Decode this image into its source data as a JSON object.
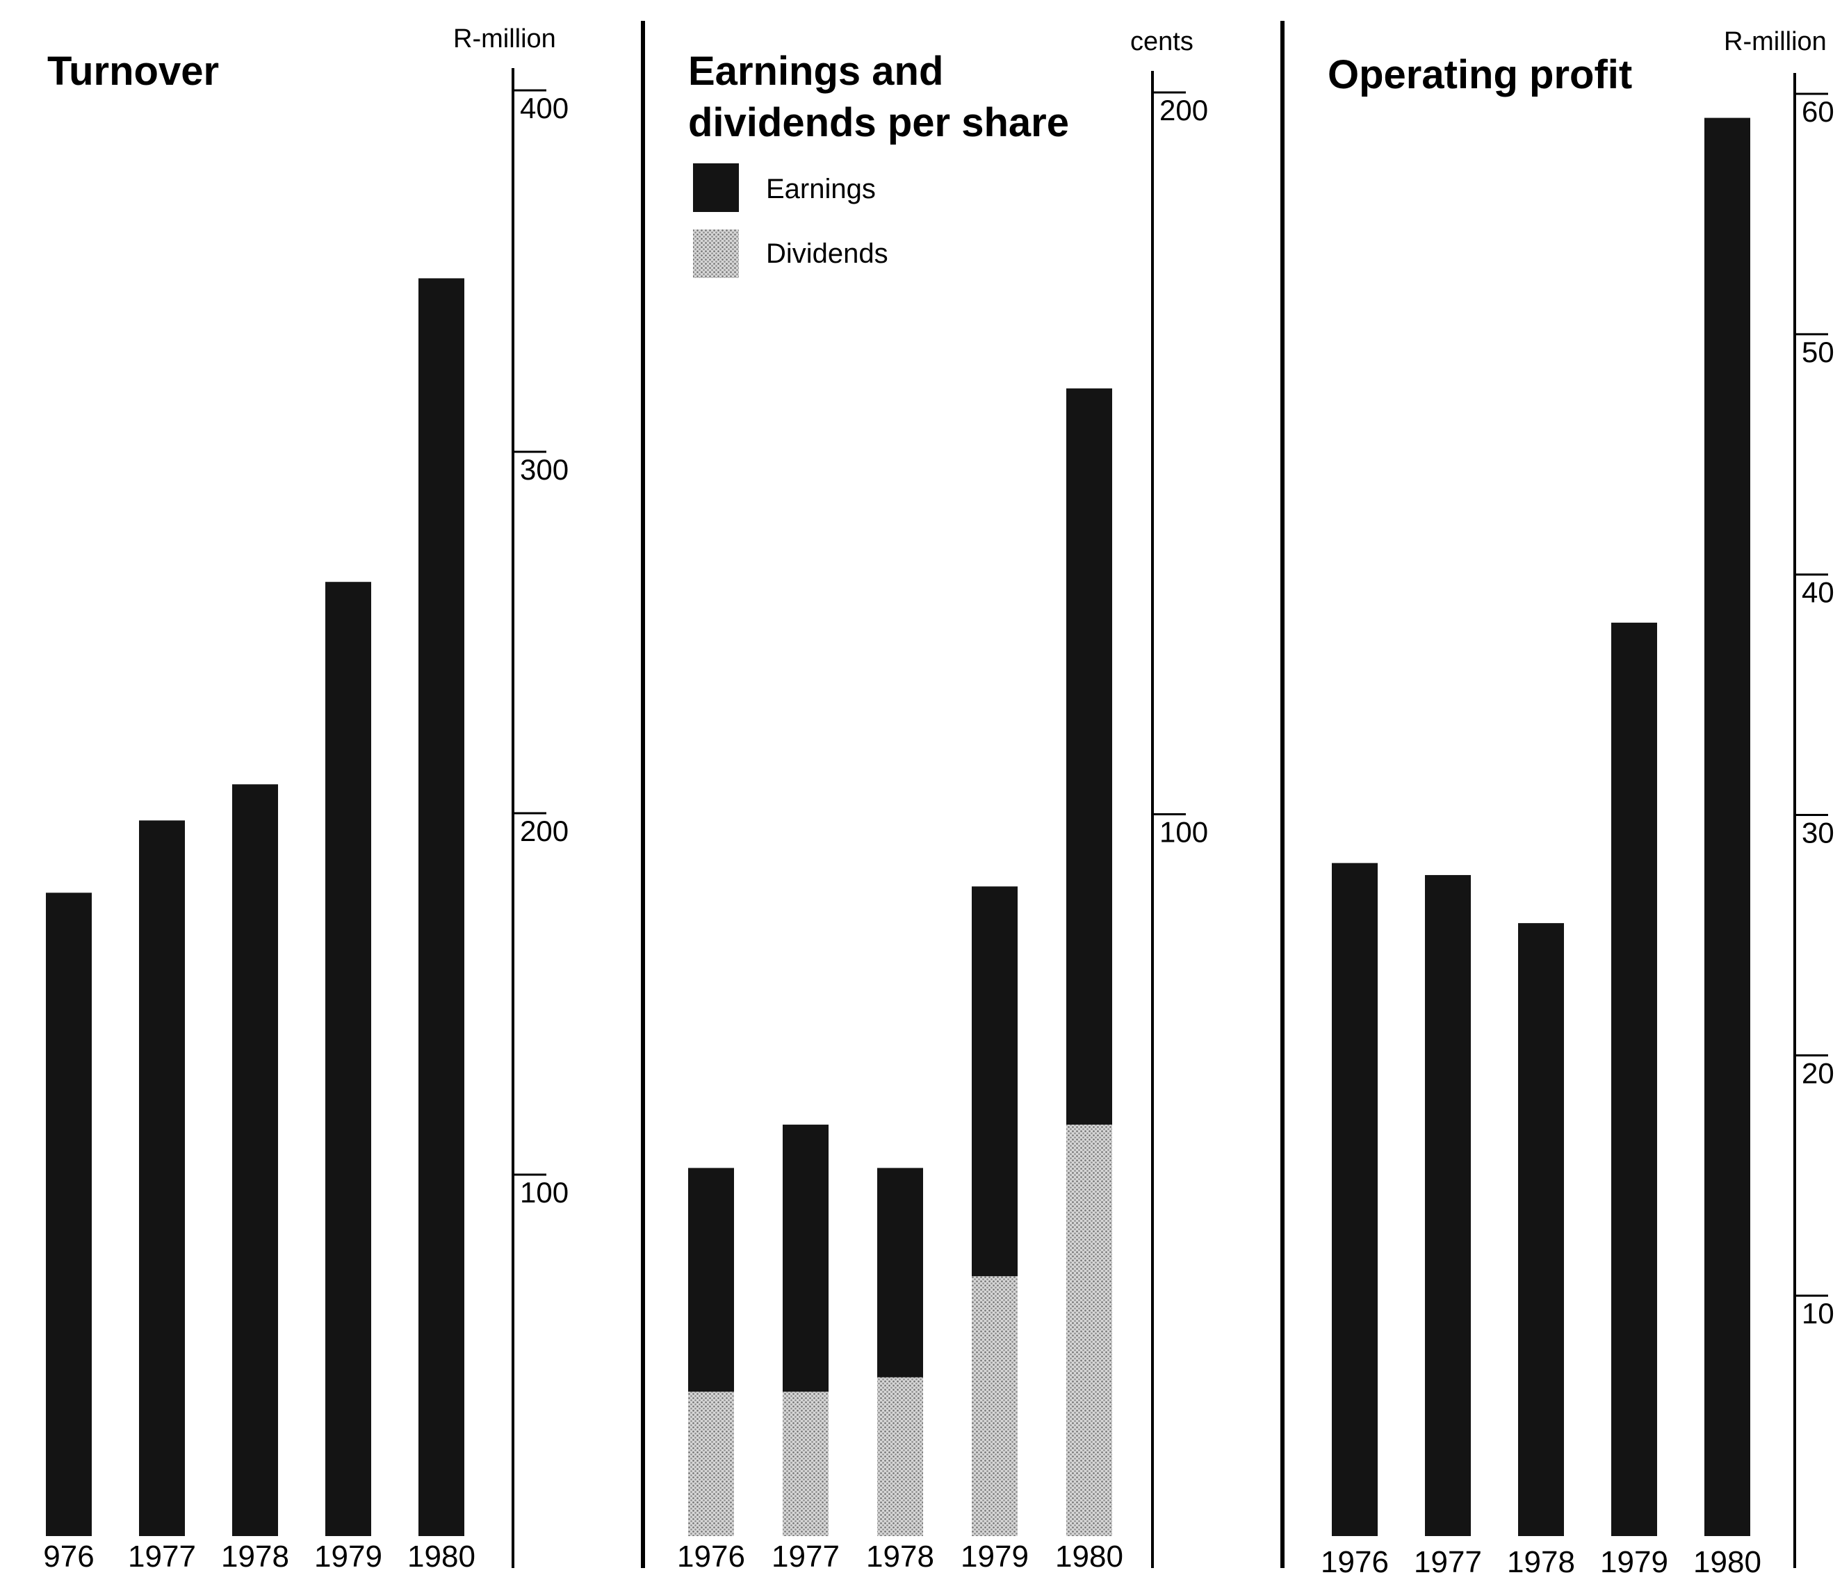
{
  "colors": {
    "earnings": "#141414",
    "dividends": "#bdbdbd",
    "background": "#ffffff",
    "ink": "#000000"
  },
  "chart_data": [
    {
      "type": "bar",
      "title": "Turnover",
      "unit": "R-million",
      "ylim": [
        0,
        400
      ],
      "yticks": [
        "100",
        "200",
        "300",
        "400"
      ],
      "categories": [
        "976",
        "1977",
        "1978",
        "1979",
        "1980"
      ],
      "values": [
        178,
        198,
        208,
        264,
        348
      ],
      "grid": false,
      "axis_side": "right"
    },
    {
      "type": "bar",
      "stacked": true,
      "title": "Earnings and dividends per share",
      "unit": "cents",
      "ylim": [
        0,
        200
      ],
      "yticks": [
        "100",
        "200"
      ],
      "categories": [
        "1976",
        "1977",
        "1978",
        "1979",
        "1980"
      ],
      "series": [
        {
          "name": "Dividends",
          "values": [
            20,
            20,
            22,
            36,
            57
          ]
        },
        {
          "name": "Earnings",
          "values": [
            31,
            37,
            29,
            54,
            102
          ]
        }
      ],
      "legend": "top-left",
      "grid": false,
      "axis_side": "right"
    },
    {
      "type": "bar",
      "title": "Operating profit",
      "unit": "R-million",
      "ylim": [
        0,
        60
      ],
      "yticks": [
        "10",
        "20",
        "30",
        "40",
        "50",
        "60"
      ],
      "categories": [
        "1976",
        "1977",
        "1978",
        "1979",
        "1980"
      ],
      "values": [
        28,
        27.5,
        25.5,
        38,
        59
      ],
      "grid": false,
      "axis_side": "right"
    }
  ]
}
